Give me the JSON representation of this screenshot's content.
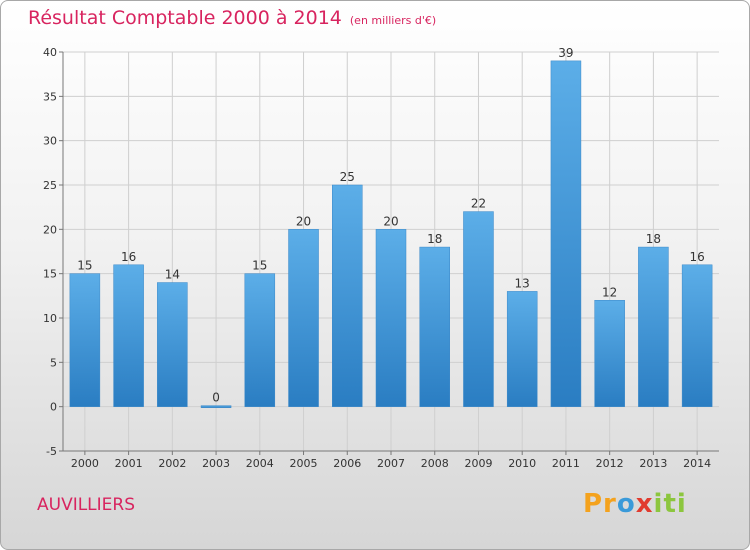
{
  "header": {
    "title": "Résultat Comptable 2000 à 2014",
    "subtitle": "(en milliers d'€)"
  },
  "footer": {
    "region": "AUVILLIERS",
    "logo_parts": [
      "Pr",
      "o",
      "x",
      "iti"
    ]
  },
  "colors": {
    "bar_top": "#5caee8",
    "bar_bottom": "#2a7dc2",
    "grid": "#cfcfcf",
    "axis": "#777777",
    "title": "#d8245f"
  },
  "chart_data": {
    "type": "bar",
    "title": "Résultat Comptable 2000 à 2014",
    "xlabel": "",
    "ylabel": "",
    "categories": [
      "2000",
      "2001",
      "2002",
      "2003",
      "2004",
      "2005",
      "2006",
      "2007",
      "2008",
      "2009",
      "2010",
      "2011",
      "2012",
      "2013",
      "2014"
    ],
    "values": [
      15,
      16,
      14,
      0,
      15,
      20,
      25,
      20,
      18,
      22,
      13,
      39,
      12,
      18,
      16
    ],
    "ylim": [
      -5,
      40
    ],
    "yticks": [
      -5,
      0,
      5,
      10,
      15,
      20,
      25,
      30,
      35,
      40
    ],
    "grid": true
  }
}
